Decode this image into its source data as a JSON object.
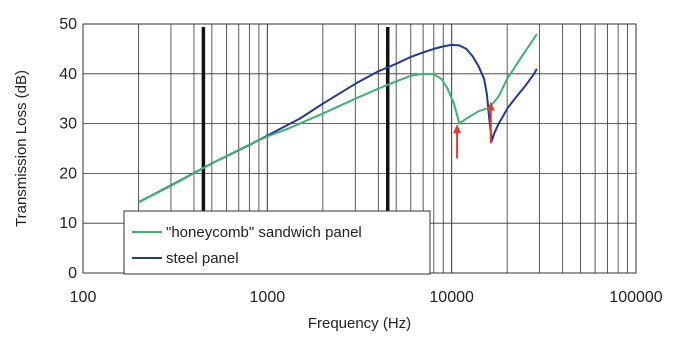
{
  "chart_data": {
    "type": "line",
    "xlabel": "Frequency (Hz)",
    "ylabel": "Transmission Loss (dB)",
    "x_scale": "log",
    "xlim": [
      100,
      100000
    ],
    "ylim": [
      0,
      50
    ],
    "x_ticks": [
      100,
      1000,
      10000,
      100000
    ],
    "x_tick_labels": [
      "100",
      "1000",
      "10000",
      "100000"
    ],
    "y_ticks": [
      0,
      10,
      20,
      30,
      40,
      50
    ],
    "y_tick_labels": [
      "0",
      "10",
      "20",
      "30",
      "40",
      "50"
    ],
    "grid": "on",
    "legend_position": "bottom-left",
    "colors": {
      "honeycomb": "#3cb371",
      "steel": "#1f3a93",
      "arrow": "#e53935",
      "marker": "#111111"
    },
    "series": [
      {
        "name": "\"honeycomb\" sandwich panel",
        "color": "#3cb371",
        "x": [
          200,
          300,
          500,
          800,
          1000,
          1300,
          2000,
          3000,
          4000,
          5000,
          6000,
          7000,
          8000,
          8800,
          9500,
          10300,
          11000,
          12000,
          14000,
          16000,
          18000,
          20000,
          24000,
          29000
        ],
        "y": [
          14.2,
          17.5,
          22.0,
          25.8,
          27.4,
          29.0,
          32.0,
          35.0,
          37.0,
          38.5,
          39.6,
          40.0,
          39.9,
          39.0,
          37.0,
          34.0,
          30.0,
          31.0,
          32.5,
          33.2,
          35.5,
          39.0,
          43.5,
          48.0
        ]
      },
      {
        "name": "steel panel",
        "color": "#1f3a93",
        "x": [
          200,
          300,
          500,
          800,
          1000,
          1500,
          2000,
          3000,
          4000,
          5000,
          6000,
          7000,
          8000,
          9000,
          10000,
          11000,
          12000,
          13000,
          14000,
          15000,
          15500,
          16000,
          16500,
          17000,
          18000,
          19000,
          20000,
          22000,
          25000,
          28000,
          29000
        ],
        "y": [
          14.2,
          17.6,
          22.0,
          25.7,
          27.6,
          31.0,
          34.0,
          38.0,
          40.5,
          42.0,
          43.4,
          44.3,
          45.0,
          45.5,
          45.8,
          45.7,
          45.0,
          43.5,
          41.5,
          39.0,
          36.0,
          31.0,
          26.5,
          28.0,
          30.0,
          31.5,
          33.0,
          35.0,
          37.5,
          40.0,
          41.0
        ]
      }
    ],
    "markers": [
      {
        "type": "vertical-line",
        "x": 450
      },
      {
        "type": "vertical-line",
        "x": 4500
      }
    ],
    "annotations": [
      {
        "type": "arrow",
        "x": 10700,
        "y_from": 23,
        "y_to": 29.5
      },
      {
        "type": "arrow",
        "x": 16300,
        "y_from": 26,
        "y_to": 34
      }
    ]
  }
}
